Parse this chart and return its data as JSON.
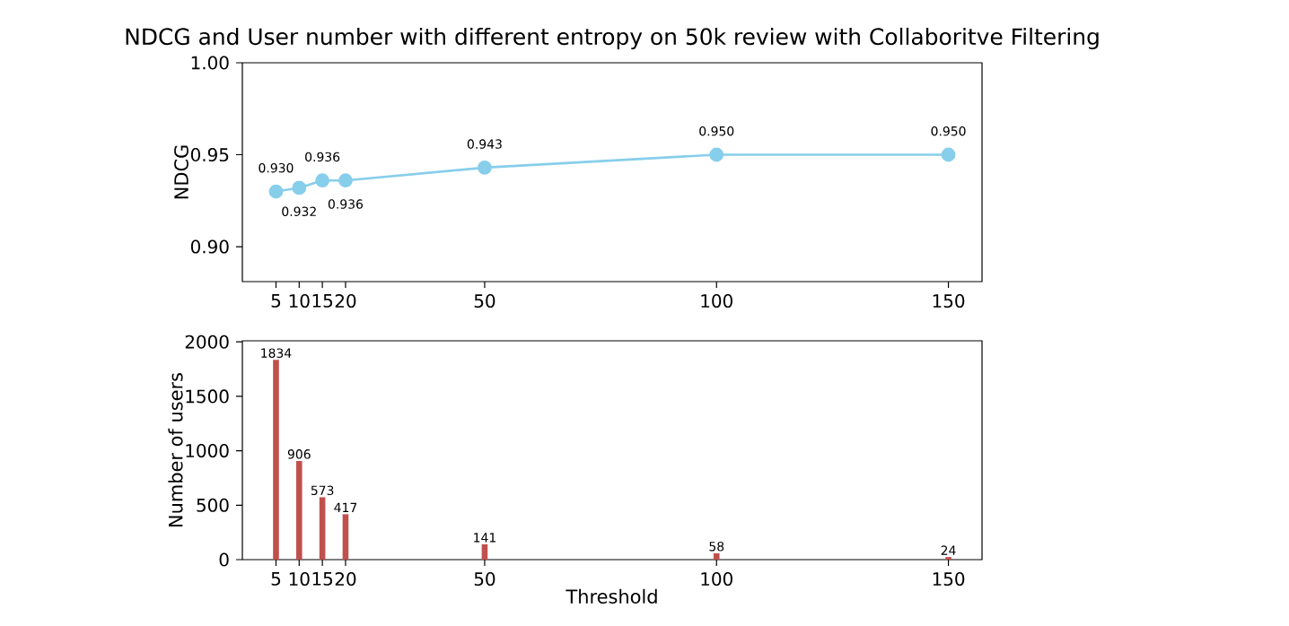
{
  "chart_data": [
    {
      "type": "line",
      "title": "NDCG and User number with different entropy on 50k review with Collaboritve Filtering",
      "ylabel": "NDCG",
      "x": [
        5,
        10,
        15,
        20,
        50,
        100,
        150
      ],
      "values": [
        0.93,
        0.932,
        0.936,
        0.936,
        0.943,
        0.95,
        0.95
      ],
      "value_labels": [
        "0.930",
        "0.932",
        "0.936",
        "0.936",
        "0.943",
        "0.950",
        "0.950"
      ],
      "color": "#87ceeb",
      "marker": "circle",
      "xlim": [
        -2.25,
        157.25
      ],
      "xticks": [
        5,
        10,
        15,
        20,
        50,
        100,
        150
      ],
      "ylim": [
        0.881,
        1.0
      ],
      "yticks": [
        {
          "value": 0.9,
          "label": "0.90"
        },
        {
          "value": 0.95,
          "label": "0.95"
        },
        {
          "value": 1.0,
          "label": "1.00"
        }
      ]
    },
    {
      "type": "bar",
      "xlabel": "Threshold",
      "ylabel": "Number of users",
      "x": [
        5,
        10,
        15,
        20,
        50,
        100,
        150
      ],
      "values": [
        1834,
        906,
        573,
        417,
        141,
        58,
        24
      ],
      "color": "#c0504d",
      "data_labels": true,
      "xlim": [
        -2.25,
        157.25
      ],
      "xticks": [
        5,
        10,
        15,
        20,
        50,
        100,
        150
      ],
      "ylim": [
        0,
        2010
      ],
      "yticks": [
        0,
        500,
        1000,
        1500,
        2000
      ]
    }
  ]
}
